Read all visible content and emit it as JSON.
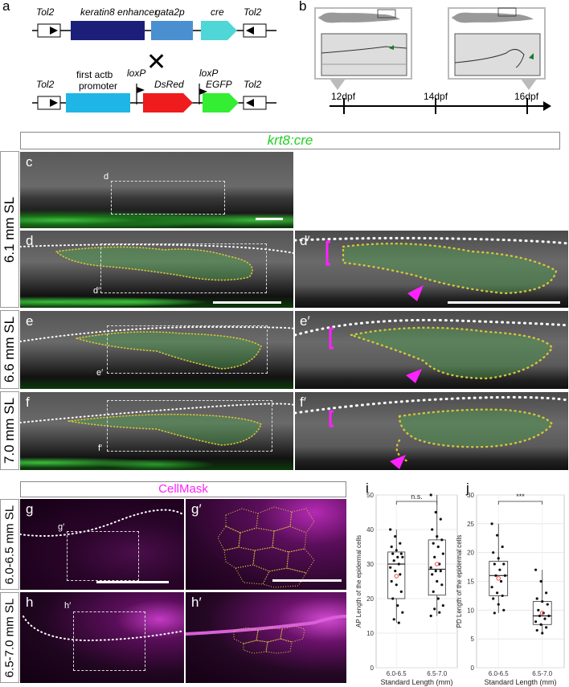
{
  "panel_letters": {
    "a": "a",
    "b": "b",
    "c": "c",
    "d": "d",
    "dprime": "d′",
    "e": "e",
    "eprime": "e′",
    "f": "f",
    "fprime": "f′",
    "g": "g",
    "gprime": "g′",
    "h": "h",
    "hprime": "h′",
    "i": "i",
    "j": "j"
  },
  "construct1": {
    "tol2_left": "Tol2",
    "enhancer": "keratin8 enhancer",
    "promoter": "gata2p",
    "cre": "cre",
    "tol2_right": "Tol2"
  },
  "construct2": {
    "tol2_left": "Tol2",
    "actb_line1": "first actb",
    "actb_line2": "promoter",
    "loxp1": "loxP",
    "dsred": "DsRed",
    "loxp2": "loxP",
    "egfp": "EGFP",
    "tol2_right": "Tol2"
  },
  "cross_symbol": "✕",
  "timeline": {
    "t1": "12dpf",
    "t2": "14dpf",
    "t3": "16dpf"
  },
  "krt8_header": "krt8:cre",
  "rows": {
    "r1": "6.1 mm SL",
    "r2": "6.6 mm SL",
    "r3": "7.0 mm SL",
    "r4": "6.0-6.5 mm SL",
    "r5": "6.5-7.0 mm SL"
  },
  "inset_labels": {
    "d": "d",
    "dprime": "d′",
    "eprime": "e′",
    "fprime": "f′",
    "gprime": "g′",
    "hprime": "h′"
  },
  "cellmask_header": "CellMask",
  "colors": {
    "green": "#22d022",
    "magenta": "#ff22ff",
    "yellow": "#e8d23a",
    "navy": "#1b1f7a",
    "steel": "#4a8fd0",
    "cyan": "#4fd6d6",
    "cyan2": "#1fb6e6",
    "red": "#ee1c1c",
    "egfp": "#33ee33"
  },
  "chart_data": [
    {
      "type": "box",
      "panel": "i",
      "xlabel": "Standard Length (mm)",
      "ylabel": "AP Length of the epidermal cells",
      "categories": [
        "6.0-6.5",
        "6.5-7.0"
      ],
      "ylim": [
        0,
        50
      ],
      "yticks": [
        0,
        10,
        20,
        30,
        40,
        50
      ],
      "significance": "n.s.",
      "boxes": [
        {
          "q1": 20,
          "median": 30,
          "q3": 33.5,
          "whisker_low": 13,
          "whisker_high": 40,
          "mean": 26.5
        },
        {
          "q1": 21,
          "median": 28.5,
          "q3": 37,
          "whisker_low": 15,
          "whisker_high": 50,
          "mean": 30
        }
      ],
      "points": [
        [
          40,
          38,
          36,
          35,
          34,
          33,
          33,
          32,
          32,
          31,
          30,
          29,
          28,
          27,
          25,
          24,
          22,
          20,
          18,
          16,
          14,
          13
        ],
        [
          50,
          45,
          43,
          40,
          38,
          37,
          36,
          35,
          33,
          32,
          30,
          29,
          28,
          28,
          27,
          25,
          24,
          22,
          20,
          18,
          17,
          16,
          15
        ]
      ]
    },
    {
      "type": "box",
      "panel": "j",
      "xlabel": "Standard Length (mm)",
      "ylabel": "PD Length of the epidermal cells",
      "categories": [
        "6.0-6.5",
        "6.5-7.0"
      ],
      "ylim": [
        0,
        30
      ],
      "yticks": [
        0,
        5,
        10,
        15,
        20,
        25,
        30
      ],
      "significance": "***",
      "boxes": [
        {
          "q1": 12.5,
          "median": 16,
          "q3": 18.5,
          "whisker_low": 9.5,
          "whisker_high": 25,
          "mean": 15.5
        },
        {
          "q1": 7.5,
          "median": 9,
          "q3": 11.5,
          "whisker_low": 6,
          "whisker_high": 17,
          "mean": 9.5
        }
      ],
      "points": [
        [
          25,
          23,
          21,
          20,
          19,
          18,
          18,
          17,
          16,
          16,
          15,
          14,
          13,
          12.5,
          12,
          11,
          10,
          9.5
        ],
        [
          17,
          15,
          13,
          12,
          11.5,
          11,
          10,
          9.5,
          9,
          9,
          8.5,
          8,
          7.5,
          7,
          6.5,
          6
        ]
      ]
    }
  ]
}
